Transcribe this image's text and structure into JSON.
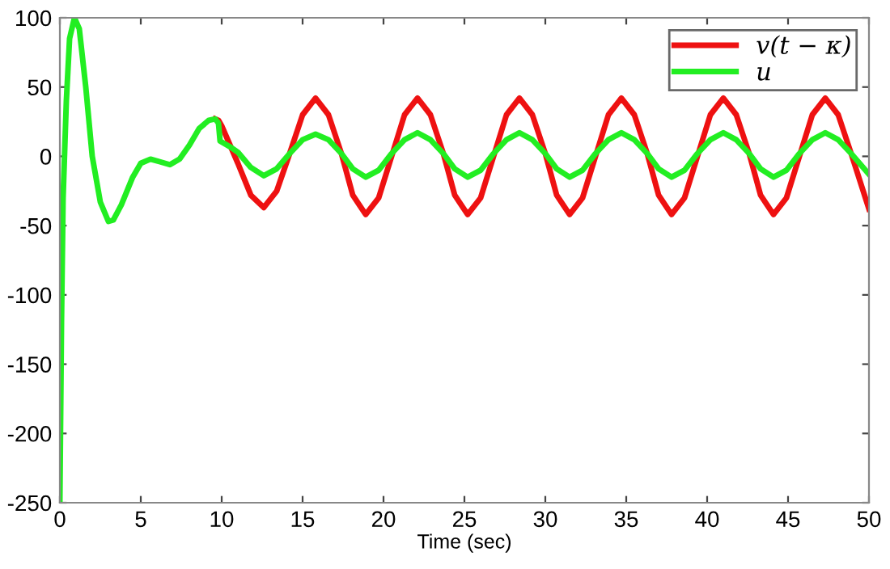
{
  "chart_data": {
    "type": "line",
    "xlabel": "Time (sec)",
    "xlim": [
      0,
      50
    ],
    "ylim": [
      -250,
      100
    ],
    "xticks": [
      0,
      5,
      10,
      15,
      20,
      25,
      30,
      35,
      40,
      45,
      50
    ],
    "yticks": [
      -250,
      -200,
      -150,
      -100,
      -50,
      0,
      50,
      100
    ],
    "grid": false,
    "legend": "top right",
    "marker": "none",
    "line_style": "solid",
    "series": [
      {
        "name": "v(t − κ)",
        "color": "#ee1111",
        "x": [
          9.6,
          9.8,
          10,
          11,
          11.8,
          12.6,
          13.4,
          14.2,
          15,
          15.8,
          16.6,
          17.4,
          18.1,
          18.9,
          19.7,
          20.5,
          21.3,
          22.1,
          22.9,
          23.7,
          24.4,
          25.2,
          26,
          26.8,
          27.6,
          28.4,
          29.2,
          30,
          30.7,
          31.5,
          32.3,
          33.1,
          33.9,
          34.7,
          35.5,
          36.3,
          37,
          37.8,
          38.6,
          39.4,
          40.2,
          41,
          41.8,
          42.6,
          43.3,
          44.1,
          44.9,
          45.7,
          46.5,
          47.3,
          48.1,
          48.9,
          50
        ],
        "values": [
          27,
          26,
          22,
          -5,
          -28,
          -37,
          -25,
          2,
          30,
          42,
          30,
          2,
          -28,
          -42,
          -30,
          0,
          30,
          42,
          30,
          2,
          -28,
          -42,
          -30,
          0,
          30,
          42,
          30,
          2,
          -28,
          -42,
          -30,
          0,
          30,
          42,
          30,
          2,
          -28,
          -42,
          -30,
          0,
          30,
          42,
          30,
          2,
          -28,
          -42,
          -30,
          0,
          30,
          42,
          30,
          2,
          -38
        ]
      },
      {
        "name": "u",
        "color": "#22ee22",
        "x": [
          0,
          0.1,
          0.2,
          0.4,
          0.6,
          0.9,
          1.2,
          1.6,
          2.0,
          2.5,
          3.0,
          3.3,
          3.8,
          4.5,
          5.0,
          5.6,
          6.2,
          6.8,
          7.4,
          8.0,
          8.6,
          9.2,
          9.6,
          9.8,
          9.9,
          10.5,
          11,
          11.8,
          12.6,
          13.4,
          14.2,
          15,
          15.8,
          16.6,
          17.4,
          18.1,
          18.9,
          19.7,
          20.5,
          21.3,
          22.1,
          22.9,
          23.7,
          24.4,
          25.2,
          26,
          26.8,
          27.6,
          28.4,
          29.2,
          30,
          30.7,
          31.5,
          32.3,
          33.1,
          33.9,
          34.7,
          35.5,
          36.3,
          37,
          37.8,
          38.6,
          39.4,
          40.2,
          41,
          41.8,
          42.6,
          43.3,
          44.1,
          44.9,
          45.7,
          46.5,
          47.3,
          48.1,
          48.9,
          50
        ],
        "values": [
          -250,
          -120,
          -30,
          40,
          85,
          100,
          92,
          50,
          0,
          -33,
          -47,
          -46,
          -35,
          -15,
          -5,
          -2,
          -4,
          -6,
          -2,
          8,
          20,
          26,
          27,
          24,
          11,
          7,
          3,
          -8,
          -14,
          -9,
          2,
          12,
          16,
          12,
          2,
          -9,
          -15,
          -10,
          2,
          12,
          17,
          12,
          2,
          -9,
          -15,
          -10,
          2,
          12,
          17,
          12,
          2,
          -9,
          -15,
          -10,
          2,
          12,
          17,
          12,
          2,
          -9,
          -15,
          -10,
          2,
          12,
          17,
          12,
          2,
          -9,
          -15,
          -10,
          2,
          12,
          17,
          12,
          2,
          -13
        ]
      }
    ]
  }
}
